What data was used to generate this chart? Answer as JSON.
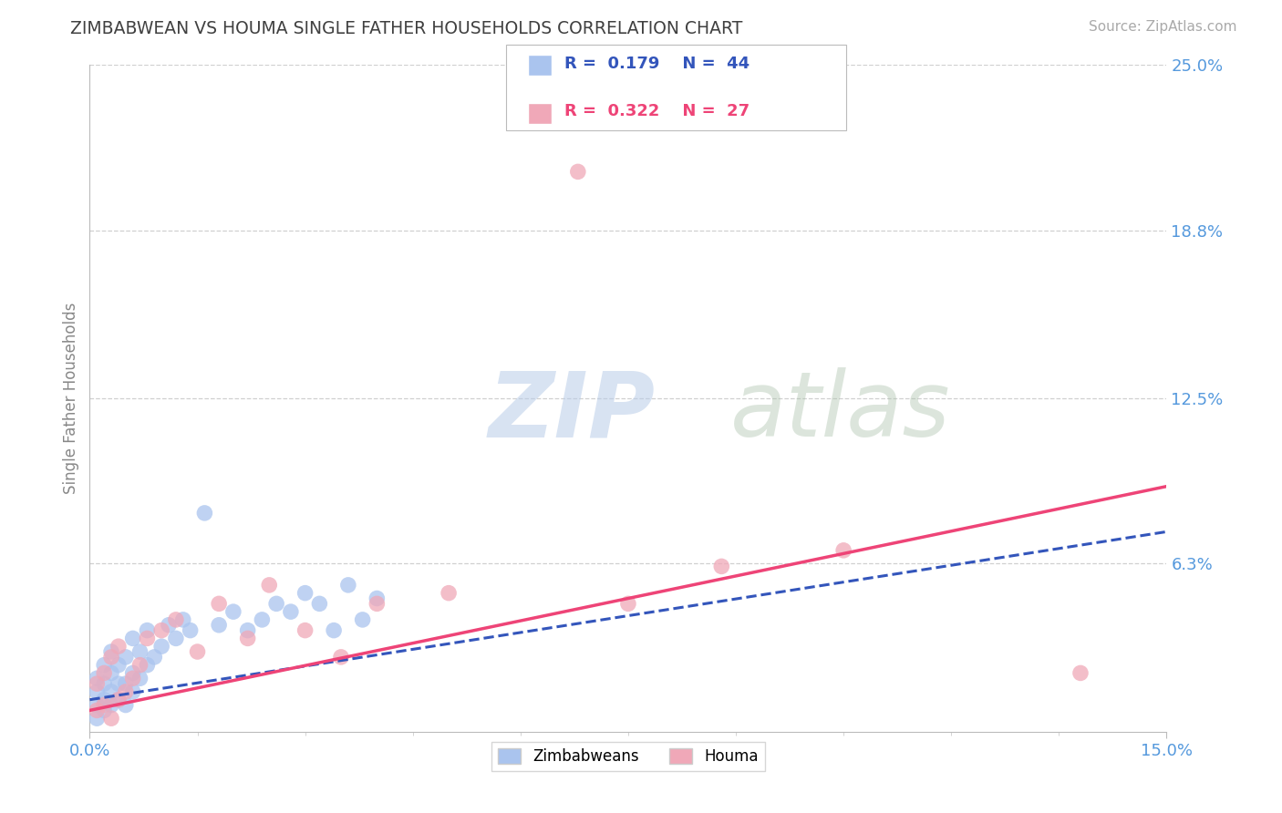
{
  "title": "ZIMBABWEAN VS HOUMA SINGLE FATHER HOUSEHOLDS CORRELATION CHART",
  "source_text": "Source: ZipAtlas.com",
  "ylabel": "Single Father Households",
  "xlim": [
    0.0,
    0.15
  ],
  "ylim": [
    0.0,
    0.25
  ],
  "ytick_vals": [
    0.063,
    0.125,
    0.188,
    0.25
  ],
  "ytick_labs": [
    "6.3%",
    "12.5%",
    "18.8%",
    "25.0%"
  ],
  "xtick_vals": [
    0.0,
    0.15
  ],
  "xtick_labs": [
    "0.0%",
    "15.0%"
  ],
  "minor_xtick_vals": [
    0.015,
    0.03,
    0.045,
    0.06,
    0.075,
    0.09,
    0.105,
    0.12,
    0.135
  ],
  "watermark_zip": "ZIP",
  "watermark_atlas": "atlas",
  "background_color": "#ffffff",
  "grid_color": "#d0d0d0",
  "title_color": "#404040",
  "axis_label_color": "#888888",
  "tick_label_color": "#5599dd",
  "zimbabwean_color": "#aac4ee",
  "houma_color": "#f0a8b8",
  "trendline_zimbabwean_color": "#3355bb",
  "trendline_houma_color": "#ee4477",
  "legend_color1": "#aac4ee",
  "legend_color2": "#f0a8b8",
  "zim_x": [
    0.001,
    0.001,
    0.001,
    0.001,
    0.002,
    0.002,
    0.002,
    0.002,
    0.003,
    0.003,
    0.003,
    0.003,
    0.004,
    0.004,
    0.004,
    0.005,
    0.005,
    0.005,
    0.006,
    0.006,
    0.006,
    0.007,
    0.007,
    0.008,
    0.008,
    0.009,
    0.01,
    0.011,
    0.012,
    0.013,
    0.014,
    0.016,
    0.018,
    0.02,
    0.022,
    0.024,
    0.026,
    0.028,
    0.03,
    0.032,
    0.034,
    0.036,
    0.038,
    0.04
  ],
  "zim_y": [
    0.005,
    0.01,
    0.015,
    0.02,
    0.008,
    0.012,
    0.018,
    0.025,
    0.01,
    0.015,
    0.022,
    0.03,
    0.012,
    0.018,
    0.025,
    0.01,
    0.018,
    0.028,
    0.015,
    0.022,
    0.035,
    0.02,
    0.03,
    0.025,
    0.038,
    0.028,
    0.032,
    0.04,
    0.035,
    0.042,
    0.038,
    0.082,
    0.04,
    0.045,
    0.038,
    0.042,
    0.048,
    0.045,
    0.052,
    0.048,
    0.038,
    0.055,
    0.042,
    0.05
  ],
  "houma_x": [
    0.001,
    0.001,
    0.002,
    0.002,
    0.003,
    0.003,
    0.004,
    0.004,
    0.005,
    0.006,
    0.007,
    0.008,
    0.01,
    0.012,
    0.015,
    0.018,
    0.022,
    0.025,
    0.03,
    0.035,
    0.04,
    0.05,
    0.068,
    0.075,
    0.088,
    0.105,
    0.138
  ],
  "houma_y": [
    0.008,
    0.018,
    0.01,
    0.022,
    0.005,
    0.028,
    0.012,
    0.032,
    0.015,
    0.02,
    0.025,
    0.035,
    0.038,
    0.042,
    0.03,
    0.048,
    0.035,
    0.055,
    0.038,
    0.028,
    0.048,
    0.052,
    0.21,
    0.048,
    0.062,
    0.068,
    0.022
  ],
  "zim_trend_x": [
    0.0,
    0.15
  ],
  "zim_trend_y": [
    0.012,
    0.075
  ],
  "houma_trend_x": [
    0.0,
    0.15
  ],
  "houma_trend_y": [
    0.008,
    0.092
  ]
}
